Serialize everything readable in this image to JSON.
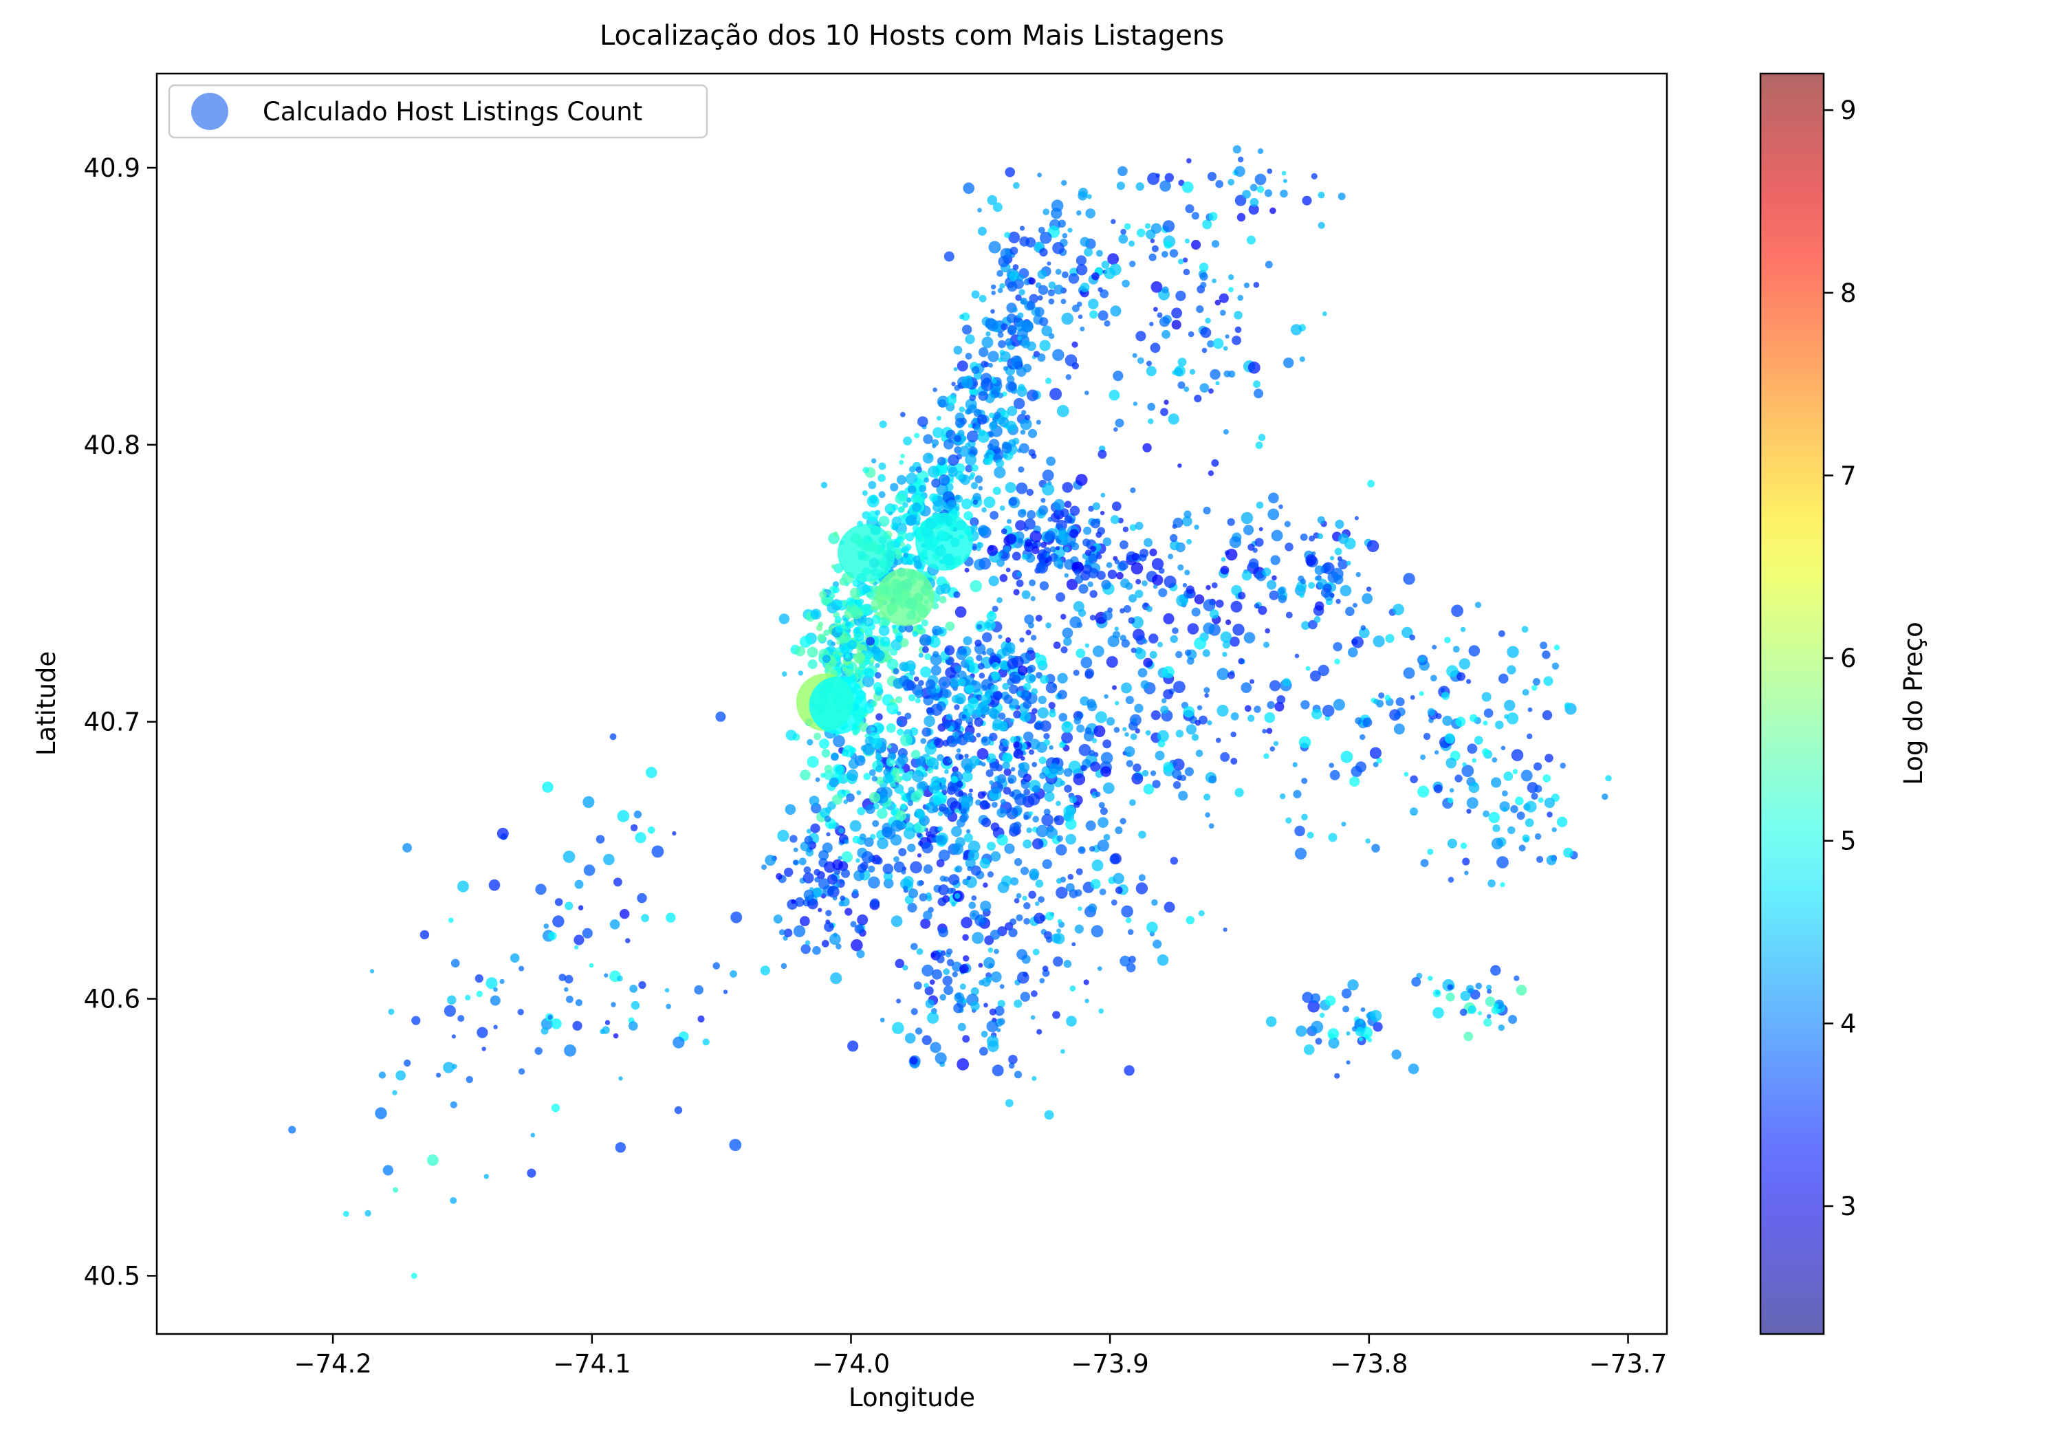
{
  "chart_data": {
    "type": "scatter",
    "title": "Localização dos 10 Hosts com Mais Listagens",
    "xlabel": "Longitude",
    "ylabel": "Latitude",
    "xlim": [
      -74.268,
      -73.685
    ],
    "ylim": [
      40.479,
      40.934
    ],
    "x_ticks": [
      -74.2,
      -74.1,
      -74.0,
      -73.9,
      -73.8,
      -73.7
    ],
    "x_tick_labels": [
      "−74.2",
      "−74.1",
      "−74.0",
      "−73.9",
      "−73.8",
      "−73.7"
    ],
    "y_ticks": [
      40.5,
      40.6,
      40.7,
      40.8,
      40.9
    ],
    "y_tick_labels": [
      "40.5",
      "40.6",
      "40.7",
      "40.8",
      "40.9"
    ],
    "grid": false,
    "legend": {
      "position": "top-left",
      "entries": [
        {
          "label": "Calculado Host Listings Count",
          "color": "#4f86f0"
        }
      ]
    },
    "colorbar": {
      "label": "Log do Preço",
      "colormap": "jet",
      "range": [
        2.3,
        9.2
      ],
      "ticks": [
        3,
        4,
        5,
        6,
        7,
        8,
        9
      ],
      "tick_labels": [
        "3",
        "4",
        "5",
        "6",
        "7",
        "8",
        "9"
      ]
    },
    "highlighted_hosts": [
      {
        "lon": -73.994,
        "lat": 40.761,
        "log_price": 5.1
      },
      {
        "lon": -73.964,
        "lat": 40.765,
        "log_price": 5.0
      },
      {
        "lon": -73.979,
        "lat": 40.745,
        "log_price": 5.6
      },
      {
        "lon": -74.01,
        "lat": 40.707,
        "log_price": 5.9
      },
      {
        "lon": -74.005,
        "lat": 40.706,
        "log_price": 4.9
      }
    ],
    "listing_clusters": [
      {
        "lon": -73.985,
        "lat": 40.745,
        "sx": 0.012,
        "sy": 0.018,
        "n": 260,
        "price": [
          4.4,
          5.6
        ]
      },
      {
        "lon": -74.003,
        "lat": 40.725,
        "sx": 0.008,
        "sy": 0.012,
        "n": 200,
        "price": [
          4.3,
          5.6
        ]
      },
      {
        "lon": -73.972,
        "lat": 40.775,
        "sx": 0.01,
        "sy": 0.012,
        "n": 180,
        "price": [
          4.2,
          5.2
        ]
      },
      {
        "lon": -73.95,
        "lat": 40.805,
        "sx": 0.01,
        "sy": 0.015,
        "n": 180,
        "price": [
          3.6,
          4.8
        ]
      },
      {
        "lon": -73.935,
        "lat": 40.845,
        "sx": 0.009,
        "sy": 0.018,
        "n": 140,
        "price": [
          3.4,
          4.6
        ]
      },
      {
        "lon": -73.945,
        "lat": 40.69,
        "sx": 0.025,
        "sy": 0.02,
        "n": 340,
        "price": [
          3.2,
          4.8
        ]
      },
      {
        "lon": -73.96,
        "lat": 40.655,
        "sx": 0.018,
        "sy": 0.018,
        "n": 200,
        "price": [
          3.2,
          4.6
        ]
      },
      {
        "lon": -73.95,
        "lat": 40.715,
        "sx": 0.014,
        "sy": 0.01,
        "n": 160,
        "price": [
          3.4,
          4.8
        ]
      },
      {
        "lon": -73.99,
        "lat": 40.68,
        "sx": 0.014,
        "sy": 0.012,
        "n": 160,
        "price": [
          4.0,
          5.4
        ]
      },
      {
        "lon": -74.01,
        "lat": 40.64,
        "sx": 0.012,
        "sy": 0.012,
        "n": 110,
        "price": [
          3.2,
          4.6
        ]
      },
      {
        "lon": -73.95,
        "lat": 40.6,
        "sx": 0.018,
        "sy": 0.015,
        "n": 120,
        "price": [
          3.2,
          4.6
        ]
      },
      {
        "lon": -73.91,
        "lat": 40.64,
        "sx": 0.02,
        "sy": 0.02,
        "n": 90,
        "price": [
          3.4,
          4.8
        ]
      },
      {
        "lon": -73.925,
        "lat": 40.765,
        "sx": 0.015,
        "sy": 0.01,
        "n": 170,
        "price": [
          3.2,
          4.6
        ]
      },
      {
        "lon": -73.885,
        "lat": 40.745,
        "sx": 0.025,
        "sy": 0.015,
        "n": 170,
        "price": [
          3.0,
          4.6
        ]
      },
      {
        "lon": -73.875,
        "lat": 40.7,
        "sx": 0.02,
        "sy": 0.015,
        "n": 100,
        "price": [
          3.2,
          4.8
        ]
      },
      {
        "lon": -73.82,
        "lat": 40.755,
        "sx": 0.015,
        "sy": 0.012,
        "n": 90,
        "price": [
          3.2,
          4.6
        ]
      },
      {
        "lon": -73.8,
        "lat": 40.7,
        "sx": 0.03,
        "sy": 0.02,
        "n": 100,
        "price": [
          3.4,
          5.0
        ]
      },
      {
        "lon": -73.76,
        "lat": 40.69,
        "sx": 0.02,
        "sy": 0.025,
        "n": 80,
        "price": [
          3.4,
          5.0
        ]
      },
      {
        "lon": -73.87,
        "lat": 40.84,
        "sx": 0.025,
        "sy": 0.025,
        "n": 120,
        "price": [
          3.0,
          4.8
        ]
      },
      {
        "lon": -73.905,
        "lat": 40.87,
        "sx": 0.015,
        "sy": 0.015,
        "n": 60,
        "price": [
          3.2,
          4.8
        ]
      },
      {
        "lon": -73.85,
        "lat": 40.89,
        "sx": 0.015,
        "sy": 0.01,
        "n": 40,
        "price": [
          3.2,
          4.8
        ]
      },
      {
        "lon": -74.09,
        "lat": 40.62,
        "sx": 0.025,
        "sy": 0.03,
        "n": 70,
        "price": [
          3.2,
          5.0
        ]
      },
      {
        "lon": -74.14,
        "lat": 40.6,
        "sx": 0.03,
        "sy": 0.03,
        "n": 40,
        "price": [
          3.4,
          5.0
        ]
      },
      {
        "lon": -74.18,
        "lat": 40.56,
        "sx": 0.03,
        "sy": 0.03,
        "n": 18,
        "price": [
          3.6,
          5.4
        ]
      },
      {
        "lon": -73.81,
        "lat": 40.59,
        "sx": 0.012,
        "sy": 0.006,
        "n": 40,
        "price": [
          3.4,
          5.0
        ]
      },
      {
        "lon": -73.76,
        "lat": 40.6,
        "sx": 0.012,
        "sy": 0.006,
        "n": 35,
        "price": [
          3.6,
          5.4
        ]
      },
      {
        "lon": -73.74,
        "lat": 40.66,
        "sx": 0.008,
        "sy": 0.01,
        "n": 30,
        "price": [
          3.4,
          5.0
        ]
      }
    ]
  }
}
